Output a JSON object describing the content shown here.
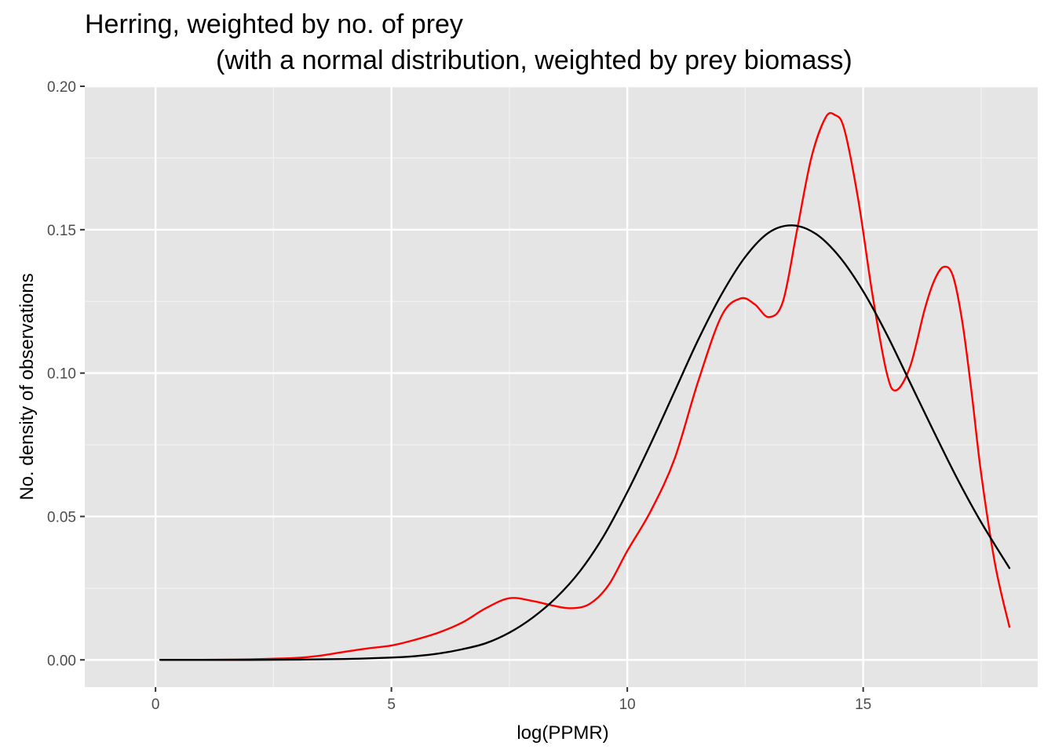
{
  "chart_data": {
    "type": "line",
    "title": "Herring, weighted by no. of prey",
    "subtitle": "(with a normal distribution, weighted by prey biomass)",
    "xlabel": "log(PPMR)",
    "ylabel": "No. density of observations",
    "xlim": [
      -1.5,
      18.7
    ],
    "ylim": [
      -0.0095,
      0.2
    ],
    "xticks": [
      0,
      5,
      10,
      15
    ],
    "xtick_labels": [
      "0",
      "5",
      "10",
      "15"
    ],
    "yticks": [
      0,
      0.05,
      0.1,
      0.15,
      0.2
    ],
    "ytick_labels": [
      "0.00",
      "0.05",
      "0.10",
      "0.15",
      "0.20"
    ],
    "grid": true,
    "background": "#e5e5e5",
    "series": [
      {
        "color": "#ff0000",
        "x": [
          0.1,
          1.0,
          2.0,
          3.0,
          3.5,
          4.0,
          4.5,
          5.0,
          5.5,
          6.0,
          6.5,
          7.0,
          7.5,
          8.0,
          8.4,
          8.8,
          9.2,
          9.6,
          10.0,
          10.5,
          11.0,
          11.5,
          12.0,
          12.4,
          12.7,
          13.0,
          13.3,
          13.6,
          13.9,
          14.2,
          14.4,
          14.6,
          14.9,
          15.2,
          15.5,
          15.7,
          16.0,
          16.3,
          16.5,
          16.7,
          16.9,
          17.1,
          17.3,
          17.5,
          17.8,
          18.1
        ],
        "y": [
          0.0,
          0.0,
          0.0002,
          0.0007,
          0.0015,
          0.0028,
          0.004,
          0.005,
          0.007,
          0.0095,
          0.013,
          0.018,
          0.0215,
          0.0205,
          0.019,
          0.018,
          0.0195,
          0.026,
          0.038,
          0.052,
          0.07,
          0.097,
          0.12,
          0.126,
          0.124,
          0.1195,
          0.125,
          0.15,
          0.175,
          0.189,
          0.19,
          0.185,
          0.16,
          0.127,
          0.1,
          0.094,
          0.1025,
          0.122,
          0.132,
          0.137,
          0.134,
          0.118,
          0.093,
          0.065,
          0.033,
          0.0115
        ]
      },
      {
        "color": "#000000",
        "x": [
          0.1,
          1.0,
          2.0,
          3.0,
          4.0,
          5.0,
          5.5,
          6.0,
          6.5,
          7.0,
          7.5,
          8.0,
          8.5,
          9.0,
          9.5,
          10.0,
          10.5,
          11.0,
          11.5,
          12.0,
          12.5,
          13.0,
          13.5,
          14.0,
          14.5,
          15.0,
          15.5,
          16.0,
          16.5,
          17.0,
          17.5,
          18.1
        ],
        "y": [
          0.0,
          0.0,
          0.0,
          0.0001,
          0.0003,
          0.0008,
          0.0013,
          0.0022,
          0.0037,
          0.0058,
          0.0095,
          0.0148,
          0.0218,
          0.031,
          0.0432,
          0.0585,
          0.0755,
          0.0935,
          0.1115,
          0.1275,
          0.1405,
          0.149,
          0.1515,
          0.1485,
          0.1405,
          0.1285,
          0.1135,
          0.0965,
          0.0795,
          0.063,
          0.048,
          0.032
        ]
      }
    ]
  }
}
